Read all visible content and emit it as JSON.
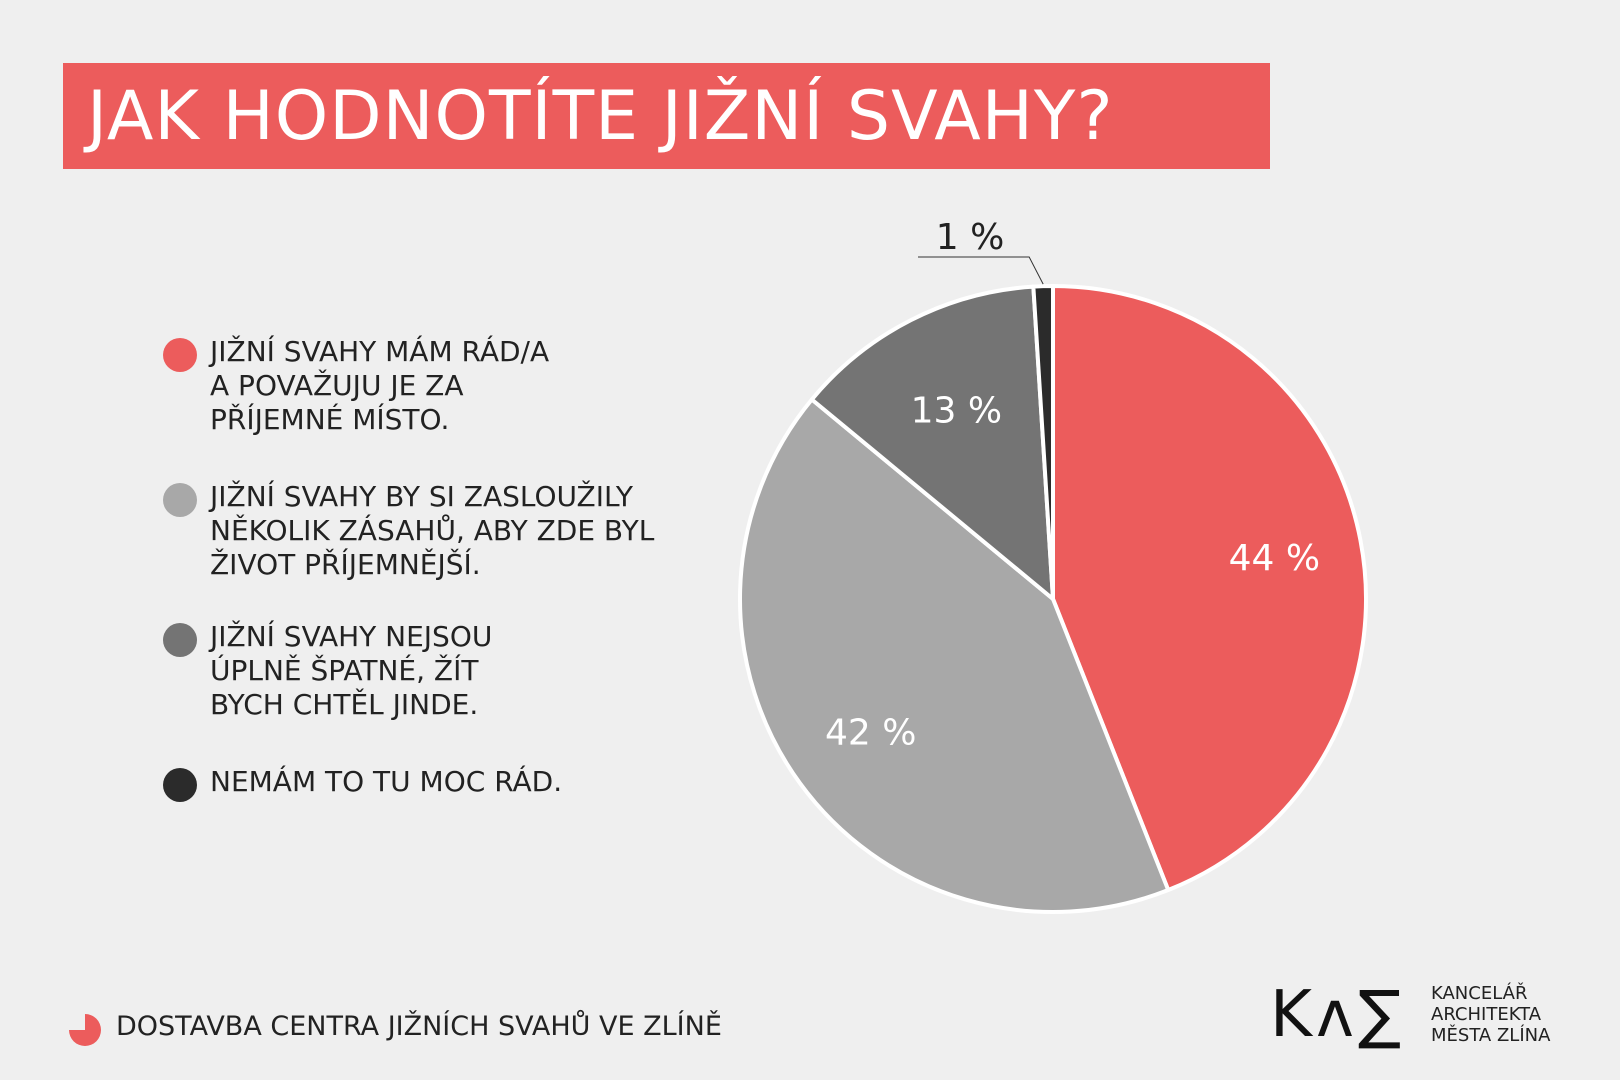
{
  "title": "JAK HODNOTÍTE JIŽNÍ SVAHY?",
  "chart_data": {
    "type": "pie",
    "categories": [
      "JIŽNÍ SVAHY MÁM RÁD/A A POVAŽUJU JE ZA PŘÍJEMNÉ MÍSTO.",
      "JIŽNÍ SVAHY BY SI ZASLOUŽILY NĚKOLIK ZÁSAHŮ, ABY ZDE BYL ŽIVOT PŘÍJEMNĚJŠÍ.",
      "JIŽNÍ SVAHY NEJSOU ÚPLNĚ ŠPATNÉ, ŽÍT BYCH CHTĚL JINDE.",
      "NEMÁM TO TU MOC RÁD."
    ],
    "values": [
      44,
      42,
      13,
      1
    ],
    "data_labels": [
      "44 %",
      "42 %",
      "13 %",
      "1 %"
    ],
    "colors": [
      "#ec5c5c",
      "#a8a8a8",
      "#747474",
      "#2b2b2b"
    ],
    "legend_placement": "left"
  },
  "legend": [
    {
      "lines": [
        "JIŽNÍ SVAHY MÁM RÁD/A",
        "A POVAŽUJU JE ZA",
        "PŘÍJEMNÉ MÍSTO."
      ]
    },
    {
      "lines": [
        "JIŽNÍ SVAHY BY SI ZASLOUŽILY",
        "NĚKOLIK ZÁSAHŮ, ABY ZDE BYL",
        "ŽIVOT PŘÍJEMNĚJŠÍ."
      ]
    },
    {
      "lines": [
        "JIŽNÍ SVAHY NEJSOU",
        "ÚPLNĚ ŠPATNÉ, ŽÍT",
        "BYCH CHTĚL JINDE."
      ]
    },
    {
      "lines": [
        "NEMÁM TO TU MOC RÁD."
      ]
    }
  ],
  "footer": {
    "text": "DOSTAVBA CENTRA JIŽNÍCH SVAHŮ VE ZLÍNĚ",
    "icon": "pie-icon",
    "icon_color": "#ec5c5c"
  },
  "logo": {
    "mark": "Kʌ∑",
    "lines": [
      "KANCELÁŘ",
      "ARCHITEKTA",
      "MĚSTA ZLÍNA"
    ]
  }
}
